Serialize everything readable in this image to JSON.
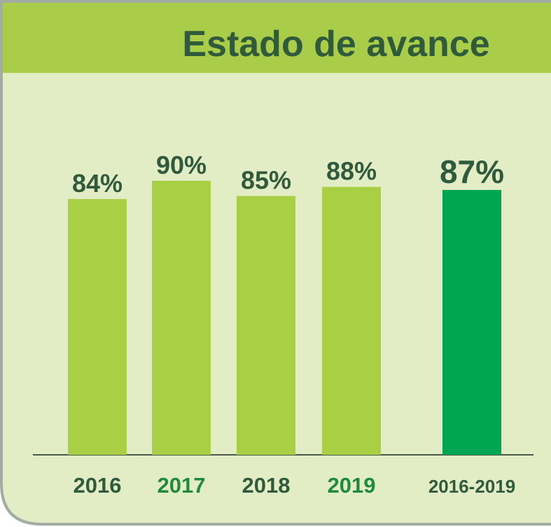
{
  "chart_data": {
    "type": "bar",
    "title": "Estado de avance",
    "categories": [
      "2016",
      "2017",
      "2018",
      "2019",
      "2016-2019"
    ],
    "values": [
      84,
      90,
      85,
      88,
      87
    ],
    "value_labels": [
      "84%",
      "90%",
      "85%",
      "88%",
      "87%"
    ],
    "colors": [
      "#a9cf45",
      "#a9cf45",
      "#a9cf45",
      "#a9cf45",
      "#00a651"
    ],
    "label_colors": [
      "#2f5a3b",
      "#1f8a3c",
      "#2f5a3b",
      "#1f8a3c",
      "#2f5a3b"
    ]
  }
}
